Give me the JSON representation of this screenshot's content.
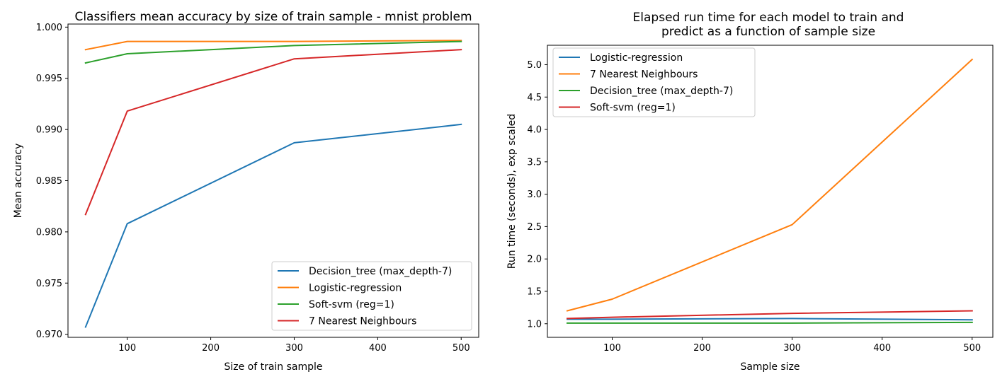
{
  "chart_data": [
    {
      "type": "line",
      "title": "Classifiers mean accuracy by size of train sample - mnist problem",
      "xlabel": "Size of train sample",
      "ylabel": "Mean accuracy",
      "x": [
        50,
        100,
        300,
        500
      ],
      "xlim": [
        29,
        521
      ],
      "ylim": [
        0.9697,
        1.0003
      ],
      "xticks": [
        100,
        200,
        300,
        400,
        500
      ],
      "xtick_labels": [
        "100",
        "200",
        "300",
        "400",
        "500"
      ],
      "yticks": [
        0.97,
        0.975,
        0.98,
        0.985,
        0.99,
        0.995,
        1.0
      ],
      "ytick_labels": [
        "0.970",
        "0.975",
        "0.980",
        "0.985",
        "0.990",
        "0.995",
        "1.000"
      ],
      "grid": false,
      "legend": "lower-right",
      "series": [
        {
          "name": "Decision_tree (max_depth-7)",
          "color": "#1f77b4",
          "values": [
            0.9707,
            0.9808,
            0.9887,
            0.9905
          ]
        },
        {
          "name": "Logistic-regression",
          "color": "#ff7f0e",
          "values": [
            0.9978,
            0.9986,
            0.9986,
            0.9987
          ]
        },
        {
          "name": "Soft-svm (reg=1)",
          "color": "#2ca02c",
          "values": [
            0.9965,
            0.9974,
            0.9982,
            0.9986
          ]
        },
        {
          "name": "7 Nearest Neighbours",
          "color": "#d62728",
          "values": [
            0.9817,
            0.9918,
            0.9969,
            0.9978
          ]
        }
      ]
    },
    {
      "type": "line",
      "title": "Elapsed run time for each model to train and\npredict as a function of sample size",
      "xlabel": "Sample size",
      "ylabel": "Run time (seconds), exp scaled",
      "x": [
        50,
        100,
        300,
        500
      ],
      "xlim": [
        28,
        523
      ],
      "ylim": [
        0.79,
        5.3
      ],
      "xticks": [
        100,
        200,
        300,
        400,
        500
      ],
      "xtick_labels": [
        "100",
        "200",
        "300",
        "400",
        "500"
      ],
      "yticks": [
        1.0,
        1.5,
        2.0,
        2.5,
        3.0,
        3.5,
        4.0,
        4.5,
        5.0
      ],
      "ytick_labels": [
        "1.0",
        "1.5",
        "2.0",
        "2.5",
        "3.0",
        "3.5",
        "4.0",
        "4.5",
        "5.0"
      ],
      "grid": false,
      "legend": "upper-left",
      "series": [
        {
          "name": "Logistic-regression",
          "color": "#1f77b4",
          "values": [
            1.07,
            1.07,
            1.08,
            1.06
          ]
        },
        {
          "name": "7 Nearest Neighbours",
          "color": "#ff7f0e",
          "values": [
            1.2,
            1.38,
            2.53,
            5.08
          ]
        },
        {
          "name": "Decision_tree (max_depth-7)",
          "color": "#2ca02c",
          "values": [
            1.01,
            1.01,
            1.01,
            1.02
          ]
        },
        {
          "name": "Soft-svm (reg=1)",
          "color": "#d62728",
          "values": [
            1.08,
            1.1,
            1.16,
            1.2
          ]
        }
      ]
    }
  ]
}
